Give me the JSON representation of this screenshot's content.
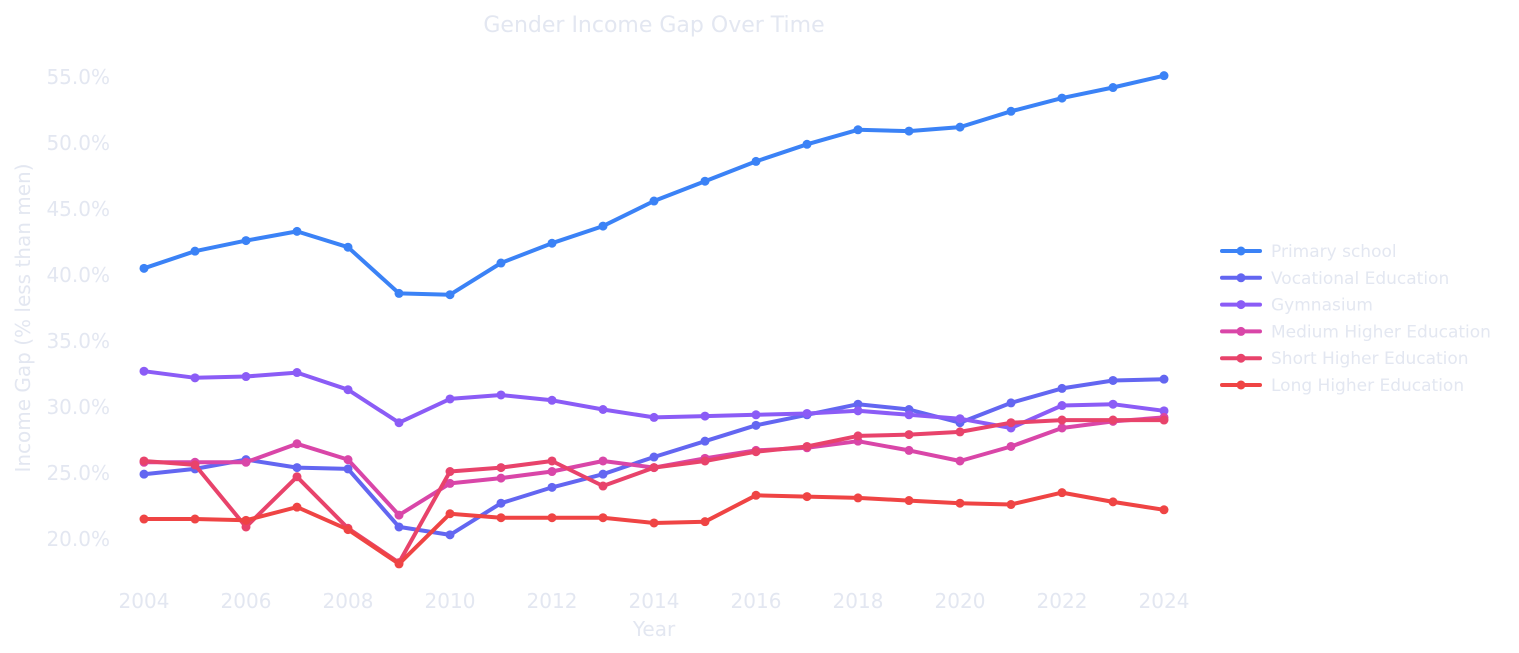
{
  "chart_data": {
    "type": "line",
    "title": "Gender Income Gap Over Time",
    "xlabel": "Year",
    "ylabel": "Income Gap (% less than men)",
    "xlim": [
      2004,
      2024
    ],
    "ylim": [
      16.5,
      57.5
    ],
    "x_ticks": [
      "2004",
      "2006",
      "2008",
      "2010",
      "2012",
      "2014",
      "2016",
      "2018",
      "2020",
      "2022",
      "2024"
    ],
    "y_ticks": [
      "20.0%",
      "25.0%",
      "30.0%",
      "35.0%",
      "40.0%",
      "45.0%",
      "50.0%",
      "55.0%"
    ],
    "grid": false,
    "legend_position": "right",
    "x": [
      2004,
      2005,
      2006,
      2007,
      2008,
      2009,
      2010,
      2011,
      2012,
      2013,
      2014,
      2015,
      2016,
      2017,
      2018,
      2019,
      2020,
      2021,
      2022,
      2023,
      2024
    ],
    "series": [
      {
        "name": "Primary school",
        "color": "#3b82f6",
        "values": [
          40.5,
          41.8,
          42.6,
          43.3,
          42.1,
          38.6,
          38.5,
          40.9,
          42.4,
          43.7,
          45.6,
          47.1,
          48.6,
          49.9,
          51.0,
          50.9,
          51.2,
          52.4,
          53.4,
          54.2,
          55.1
        ]
      },
      {
        "name": "Vocational Education",
        "color": "#6366f1",
        "values": [
          24.9,
          25.3,
          26.0,
          25.4,
          25.3,
          20.9,
          20.3,
          22.7,
          23.9,
          24.9,
          26.2,
          27.4,
          28.6,
          29.4,
          30.2,
          29.8,
          28.8,
          30.3,
          31.4,
          32.0,
          32.1
        ]
      },
      {
        "name": "Gymnasium",
        "color": "#8b5cf6",
        "values": [
          32.7,
          32.2,
          32.3,
          32.6,
          31.3,
          28.8,
          30.6,
          30.9,
          30.5,
          29.8,
          29.2,
          29.3,
          29.4,
          29.5,
          29.7,
          29.4,
          29.1,
          28.4,
          30.1,
          30.2,
          29.7
        ]
      },
      {
        "name": "Medium Higher Education",
        "color": "#d946a8",
        "values": [
          25.8,
          25.8,
          25.8,
          27.2,
          26.0,
          21.8,
          24.2,
          24.6,
          25.1,
          25.9,
          25.4,
          26.1,
          26.7,
          26.9,
          27.4,
          26.7,
          25.9,
          27.0,
          28.4,
          28.9,
          29.2
        ]
      },
      {
        "name": "Short Higher Education",
        "color": "#e8436b",
        "values": [
          25.9,
          25.6,
          20.9,
          24.7,
          20.8,
          18.2,
          25.1,
          25.4,
          25.9,
          24.0,
          25.4,
          25.9,
          26.6,
          27.0,
          27.8,
          27.9,
          28.1,
          28.8,
          29.0,
          29.0,
          29.0
        ]
      },
      {
        "name": "Long Higher Education",
        "color": "#ef4444",
        "values": [
          21.5,
          21.5,
          21.4,
          22.4,
          20.7,
          18.1,
          21.9,
          21.6,
          21.6,
          21.6,
          21.2,
          21.3,
          23.3,
          23.2,
          23.1,
          22.9,
          22.7,
          22.6,
          23.5,
          22.8,
          22.2
        ]
      }
    ]
  }
}
